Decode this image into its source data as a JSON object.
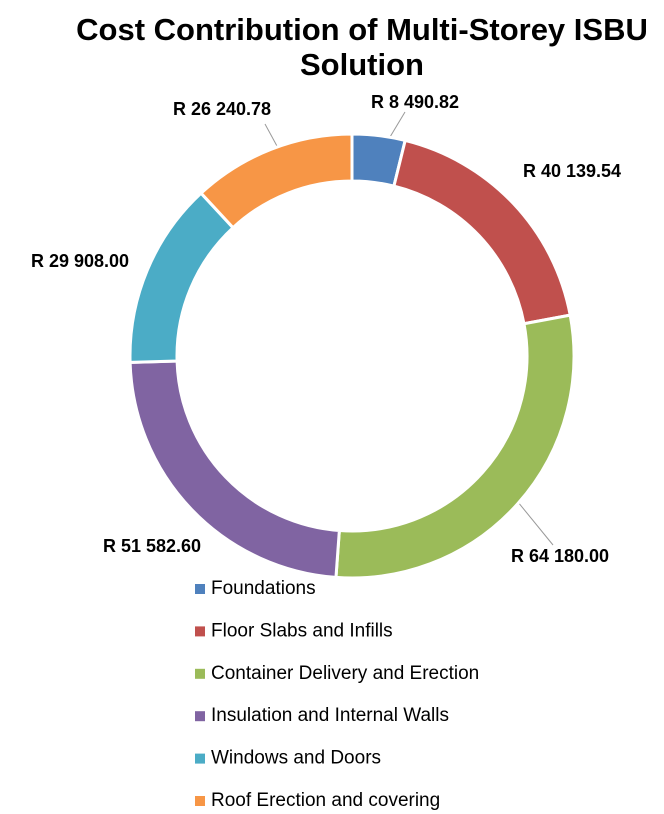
{
  "chart_data": {
    "type": "donut",
    "title": "Cost Contribution of Multi-Storey ISBU Solution",
    "categories": [
      "Foundations",
      "Floor Slabs and Infills",
      "Container Delivery and Erection",
      "Insulation and Internal Walls",
      "Windows and Doors",
      "Roof Erection and covering"
    ],
    "values": [
      8490.82,
      40139.54,
      64180.0,
      51582.6,
      29908.0,
      26240.78
    ],
    "value_labels": [
      "R 8 490.82",
      "R 40 139.54",
      "R 64 180.00",
      "R 51 582.60",
      "R 29 908.00",
      "R 26 240.78"
    ],
    "colors": [
      "#4f81bd",
      "#c0504d",
      "#9bbb59",
      "#8064a2",
      "#4bacc6",
      "#f79646"
    ],
    "legend": "bottom"
  }
}
